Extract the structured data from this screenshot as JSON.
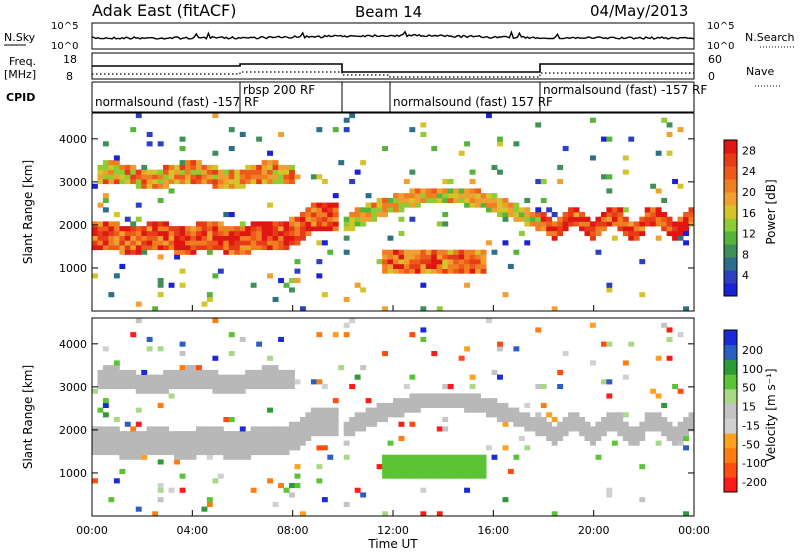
{
  "header": {
    "station": "Adak East (fitACF)",
    "beam": "Beam 14",
    "date": "04/May/2013"
  },
  "panels": {
    "nsky": {
      "label": "N.Sky",
      "yticks": [
        "10^5",
        "10^0"
      ],
      "right_label": "N.Search",
      "right_yticks": [
        "10^5",
        "10^0"
      ]
    },
    "freq": {
      "label": "Freq.",
      "unit": "[MHz]",
      "yticks": [
        "18",
        "8"
      ],
      "right_label": "Nave",
      "right_yticks": [
        "60",
        "0"
      ]
    },
    "cpid": {
      "label": "CPID",
      "segments": [
        {
          "start": 0.0,
          "end": 6.0,
          "text": "normalsound (fast) -157 RF"
        },
        {
          "start": 6.0,
          "end": 10.0,
          "text": "rbsp 200 RF"
        },
        {
          "start": 10.0,
          "end": 18.0,
          "text": "normalsound (fast) 157 RF"
        },
        {
          "start": 18.0,
          "end": 24.0,
          "text": "normalsound (fast) -157 RF"
        }
      ]
    }
  },
  "colors": {
    "power_scale": [
      "#1a22d8",
      "#2d3fc0",
      "#2d6e8a",
      "#3f8f58",
      "#56b43a",
      "#8fcc34",
      "#d4c42a",
      "#f0a030",
      "#f07f23",
      "#ee5a1c",
      "#e63b17",
      "#e01612"
    ],
    "velocity_scale": [
      "#ff1a1a",
      "#ff4d12",
      "#ff7d10",
      "#ffa01e",
      "#d0d0d0",
      "#c4c4c4",
      "#a8d888",
      "#5ac434",
      "#2d9a38",
      "#2a5ec0",
      "#1a2ad8"
    ],
    "ground_scatter": "#b8b8b8"
  },
  "chart_data": [
    {
      "type": "heatmap",
      "title": "Power",
      "ylabel": "Slant Range [km]",
      "xlabel": "Time UT",
      "xlim": [
        0,
        24
      ],
      "ylim": [
        0,
        4600
      ],
      "xticks": [
        "00:00",
        "04:00",
        "08:00",
        "12:00",
        "16:00",
        "20:00",
        "00:00"
      ],
      "yticks": [
        1000,
        2000,
        3000,
        4000
      ],
      "colorbar": {
        "label": "Power [dB]",
        "ticks": [
          4,
          8,
          12,
          16,
          20,
          24,
          28
        ],
        "range": [
          0,
          30
        ]
      }
    },
    {
      "type": "heatmap",
      "title": "Velocity",
      "ylabel": "Slant Range [km]",
      "xlabel": "Time UT",
      "xlim": [
        0,
        24
      ],
      "ylim": [
        0,
        4600
      ],
      "xticks": [
        "00:00",
        "04:00",
        "08:00",
        "12:00",
        "16:00",
        "20:00",
        "00:00"
      ],
      "yticks": [
        1000,
        2000,
        3000,
        4000
      ],
      "colorbar": {
        "label": "Velocity [m s⁻¹]",
        "ticks": [
          200,
          100,
          50,
          15,
          -15,
          -50,
          -100,
          -200
        ]
      }
    }
  ],
  "footer": {
    "xlabel": "Time UT"
  }
}
